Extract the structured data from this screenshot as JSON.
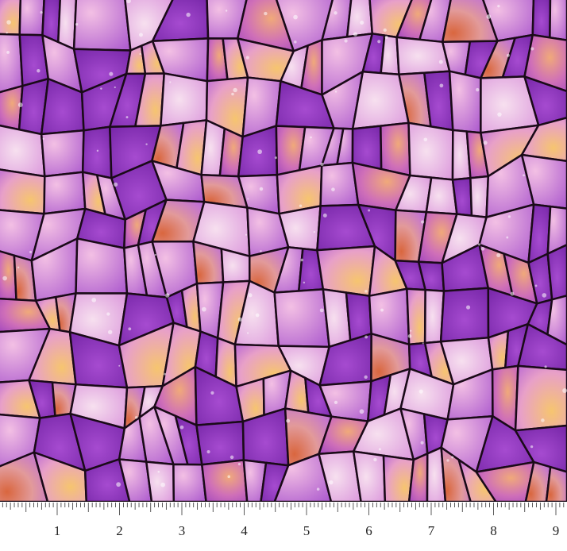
{
  "ruler": {
    "labels": [
      1,
      2,
      3,
      4,
      5,
      6,
      7,
      8,
      9
    ]
  }
}
